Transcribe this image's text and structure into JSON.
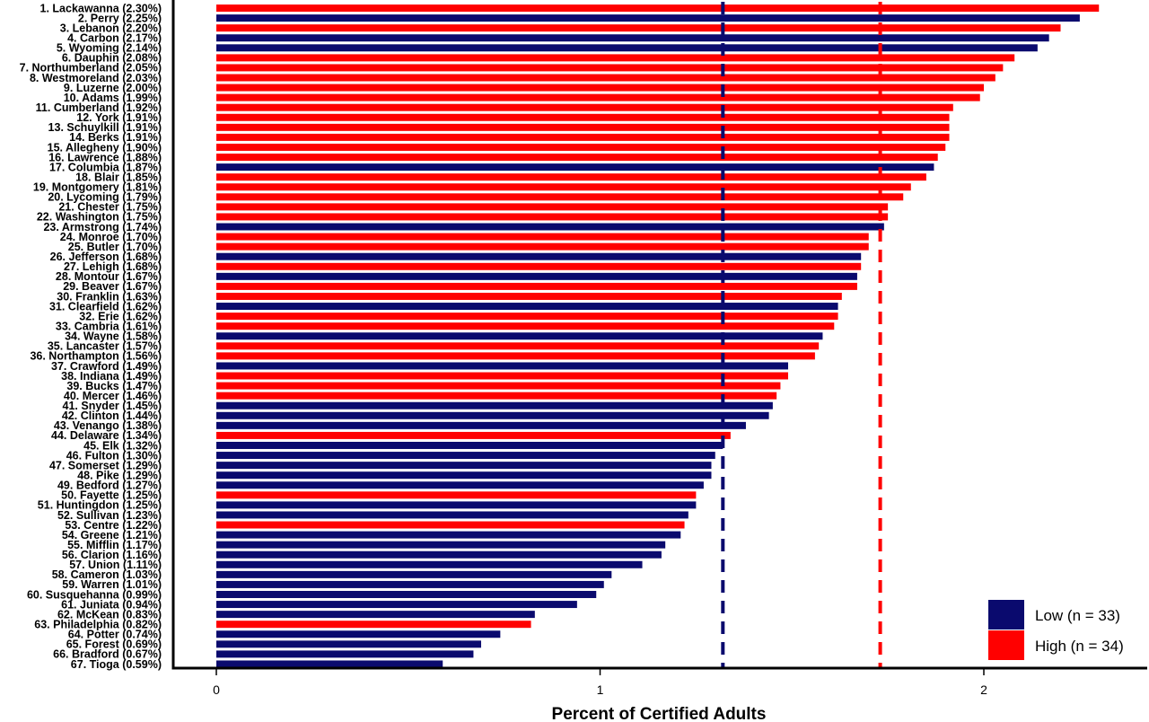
{
  "chart_data": {
    "type": "bar",
    "orientation": "horizontal",
    "xlabel": "Percent of Certified Adults",
    "xlim": [
      0,
      2.4
    ],
    "xticks": [
      0,
      1,
      2
    ],
    "reference_lines": [
      {
        "group": "Low",
        "value": 1.32,
        "color": "#0a0a6e",
        "style": "dashed"
      },
      {
        "group": "High",
        "value": 1.73,
        "color": "#ff0000",
        "style": "dashed"
      }
    ],
    "groups": [
      {
        "key": "Low",
        "label": "Low (n = 33)",
        "color": "#0a0a6e"
      },
      {
        "key": "High",
        "label": "High (n = 34)",
        "color": "#ff0000"
      }
    ],
    "legend_position": "bottom-right",
    "bars": [
      {
        "label": "1. Lackawanna (2.30%)",
        "value": 2.3,
        "group": "High"
      },
      {
        "label": "2. Perry (2.25%)",
        "value": 2.25,
        "group": "Low"
      },
      {
        "label": "3. Lebanon (2.20%)",
        "value": 2.2,
        "group": "High"
      },
      {
        "label": "4. Carbon (2.17%)",
        "value": 2.17,
        "group": "Low"
      },
      {
        "label": "5. Wyoming (2.14%)",
        "value": 2.14,
        "group": "Low"
      },
      {
        "label": "6. Dauphin (2.08%)",
        "value": 2.08,
        "group": "High"
      },
      {
        "label": "7. Northumberland (2.05%)",
        "value": 2.05,
        "group": "High"
      },
      {
        "label": "8. Westmoreland (2.03%)",
        "value": 2.03,
        "group": "High"
      },
      {
        "label": "9. Luzerne (2.00%)",
        "value": 2.0,
        "group": "High"
      },
      {
        "label": "10. Adams (1.99%)",
        "value": 1.99,
        "group": "High"
      },
      {
        "label": "11. Cumberland (1.92%)",
        "value": 1.92,
        "group": "High"
      },
      {
        "label": "12. York (1.91%)",
        "value": 1.91,
        "group": "High"
      },
      {
        "label": "13. Schuylkill (1.91%)",
        "value": 1.91,
        "group": "High"
      },
      {
        "label": "14. Berks (1.91%)",
        "value": 1.91,
        "group": "High"
      },
      {
        "label": "15. Allegheny (1.90%)",
        "value": 1.9,
        "group": "High"
      },
      {
        "label": "16. Lawrence (1.88%)",
        "value": 1.88,
        "group": "High"
      },
      {
        "label": "17. Columbia (1.87%)",
        "value": 1.87,
        "group": "Low"
      },
      {
        "label": "18. Blair (1.85%)",
        "value": 1.85,
        "group": "High"
      },
      {
        "label": "19. Montgomery (1.81%)",
        "value": 1.81,
        "group": "High"
      },
      {
        "label": "20. Lycoming (1.79%)",
        "value": 1.79,
        "group": "High"
      },
      {
        "label": "21. Chester (1.75%)",
        "value": 1.75,
        "group": "High"
      },
      {
        "label": "22. Washington (1.75%)",
        "value": 1.75,
        "group": "High"
      },
      {
        "label": "23. Armstrong (1.74%)",
        "value": 1.74,
        "group": "Low"
      },
      {
        "label": "24. Monroe (1.70%)",
        "value": 1.7,
        "group": "High"
      },
      {
        "label": "25. Butler (1.70%)",
        "value": 1.7,
        "group": "High"
      },
      {
        "label": "26. Jefferson (1.68%)",
        "value": 1.68,
        "group": "Low"
      },
      {
        "label": "27. Lehigh (1.68%)",
        "value": 1.68,
        "group": "High"
      },
      {
        "label": "28. Montour (1.67%)",
        "value": 1.67,
        "group": "Low"
      },
      {
        "label": "29. Beaver (1.67%)",
        "value": 1.67,
        "group": "High"
      },
      {
        "label": "30. Franklin (1.63%)",
        "value": 1.63,
        "group": "High"
      },
      {
        "label": "31. Clearfield (1.62%)",
        "value": 1.62,
        "group": "Low"
      },
      {
        "label": "32. Erie (1.62%)",
        "value": 1.62,
        "group": "High"
      },
      {
        "label": "33. Cambria (1.61%)",
        "value": 1.61,
        "group": "High"
      },
      {
        "label": "34. Wayne (1.58%)",
        "value": 1.58,
        "group": "Low"
      },
      {
        "label": "35. Lancaster (1.57%)",
        "value": 1.57,
        "group": "High"
      },
      {
        "label": "36. Northampton (1.56%)",
        "value": 1.56,
        "group": "High"
      },
      {
        "label": "37. Crawford (1.49%)",
        "value": 1.49,
        "group": "Low"
      },
      {
        "label": "38. Indiana (1.49%)",
        "value": 1.49,
        "group": "High"
      },
      {
        "label": "39. Bucks (1.47%)",
        "value": 1.47,
        "group": "High"
      },
      {
        "label": "40. Mercer (1.46%)",
        "value": 1.46,
        "group": "High"
      },
      {
        "label": "41. Snyder (1.45%)",
        "value": 1.45,
        "group": "Low"
      },
      {
        "label": "42. Clinton (1.44%)",
        "value": 1.44,
        "group": "Low"
      },
      {
        "label": "43. Venango (1.38%)",
        "value": 1.38,
        "group": "Low"
      },
      {
        "label": "44. Delaware (1.34%)",
        "value": 1.34,
        "group": "High"
      },
      {
        "label": "45. Elk (1.32%)",
        "value": 1.32,
        "group": "Low"
      },
      {
        "label": "46. Fulton (1.30%)",
        "value": 1.3,
        "group": "Low"
      },
      {
        "label": "47. Somerset (1.29%)",
        "value": 1.29,
        "group": "Low"
      },
      {
        "label": "48. Pike (1.29%)",
        "value": 1.29,
        "group": "Low"
      },
      {
        "label": "49. Bedford (1.27%)",
        "value": 1.27,
        "group": "Low"
      },
      {
        "label": "50. Fayette (1.25%)",
        "value": 1.25,
        "group": "High"
      },
      {
        "label": "51. Huntingdon (1.25%)",
        "value": 1.25,
        "group": "Low"
      },
      {
        "label": "52. Sullivan (1.23%)",
        "value": 1.23,
        "group": "Low"
      },
      {
        "label": "53. Centre (1.22%)",
        "value": 1.22,
        "group": "High"
      },
      {
        "label": "54. Greene (1.21%)",
        "value": 1.21,
        "group": "Low"
      },
      {
        "label": "55. Mifflin (1.17%)",
        "value": 1.17,
        "group": "Low"
      },
      {
        "label": "56. Clarion (1.16%)",
        "value": 1.16,
        "group": "Low"
      },
      {
        "label": "57. Union (1.11%)",
        "value": 1.11,
        "group": "Low"
      },
      {
        "label": "58. Cameron (1.03%)",
        "value": 1.03,
        "group": "Low"
      },
      {
        "label": "59. Warren (1.01%)",
        "value": 1.01,
        "group": "Low"
      },
      {
        "label": "60. Susquehanna (0.99%)",
        "value": 0.99,
        "group": "Low"
      },
      {
        "label": "61. Juniata (0.94%)",
        "value": 0.94,
        "group": "Low"
      },
      {
        "label": "62. McKean (0.83%)",
        "value": 0.83,
        "group": "Low"
      },
      {
        "label": "63. Philadelphia (0.82%)",
        "value": 0.82,
        "group": "High"
      },
      {
        "label": "64. Potter (0.74%)",
        "value": 0.74,
        "group": "Low"
      },
      {
        "label": "65. Forest (0.69%)",
        "value": 0.69,
        "group": "Low"
      },
      {
        "label": "66. Bradford (0.67%)",
        "value": 0.67,
        "group": "Low"
      },
      {
        "label": "67. Tioga (0.59%)",
        "value": 0.59,
        "group": "Low"
      }
    ]
  }
}
